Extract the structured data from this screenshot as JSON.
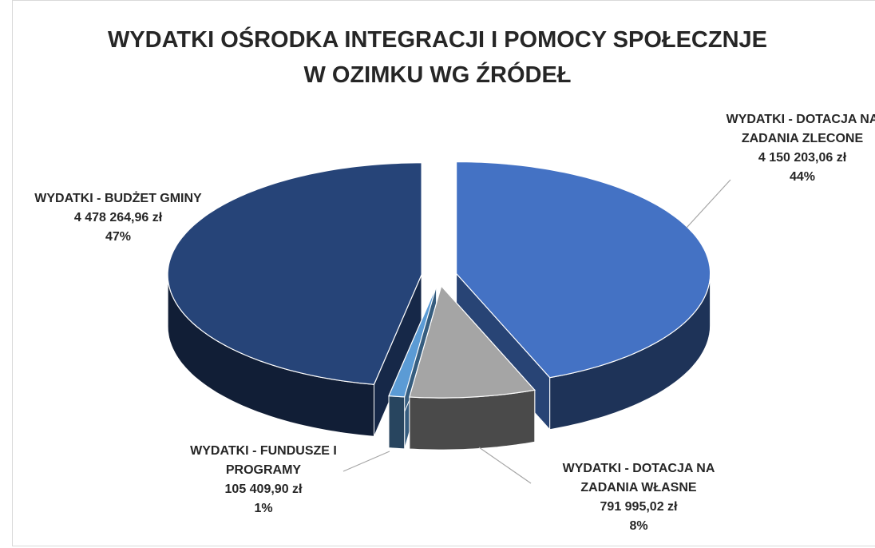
{
  "chart_data": {
    "type": "pie3d",
    "title": [
      "WYDATKI OŚRODKA INTEGRACJI I POMOCY SPOŁECZNJE",
      "W OZIMKU WG ŹRÓDEŁ"
    ],
    "categories": [
      "WYDATKI - DOTACJA NA ZADANIA ZLECONE",
      "WYDATKI - DOTACJA NA ZADANIA WŁASNE",
      "WYDATKI - FUNDUSZE I PROGRAMY",
      "WYDATKI - BUDŻET GMINY"
    ],
    "values": [
      44,
      8,
      1,
      47
    ],
    "value_labels": [
      "44%",
      "8%",
      "1%",
      "47%"
    ],
    "amounts": [
      4150203.06,
      791995.02,
      105409.9,
      4478264.96
    ],
    "amount_labels": [
      "4 150 203,06 zł",
      "791 995,02 zł",
      "105 409,90 zł",
      "4 478 264,96 zł"
    ],
    "colors": [
      "#4472c4",
      "#a5a5a5",
      "#5b9bd5",
      "#264478"
    ]
  }
}
